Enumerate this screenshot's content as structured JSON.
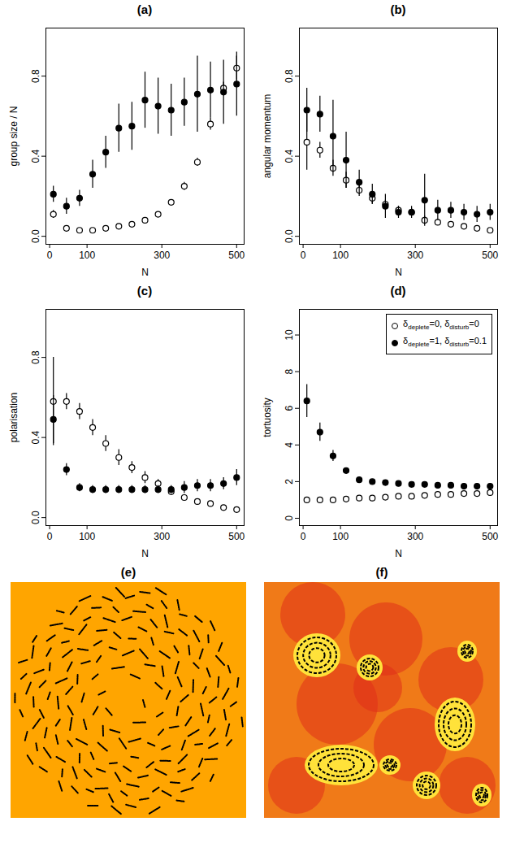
{
  "chart_data": [
    {
      "type": "scatter",
      "title": "(a)",
      "xlabel": "N",
      "ylabel": "group size / N",
      "x": [
        10,
        45,
        80,
        115,
        150,
        185,
        220,
        255,
        290,
        325,
        360,
        395,
        430,
        465,
        500
      ],
      "xlim": [
        -10,
        520
      ],
      "xticks": [
        0,
        100,
        300,
        500
      ],
      "ylim": [
        -0.04,
        1.04
      ],
      "yticks": [
        {
          "value": 0,
          "label": "0.0"
        },
        {
          "value": 0.4,
          "label": "0.4"
        },
        {
          "value": 0.8,
          "label": "0.8"
        }
      ],
      "series": [
        {
          "name": "δdeplete=0, δdisturb=0",
          "color": "#000000",
          "marker": "open circle",
          "values": [
            0.11,
            0.04,
            0.03,
            0.03,
            0.04,
            0.05,
            0.06,
            0.08,
            0.11,
            0.17,
            0.25,
            0.37,
            0.56,
            0.74,
            0.84
          ],
          "errors": [
            0.02,
            0.01,
            0.01,
            0.01,
            0.01,
            0.01,
            0.01,
            0.01,
            0.01,
            0.01,
            0.02,
            0.02,
            0.03,
            0.03,
            0.06
          ]
        },
        {
          "name": "δdeplete=1, δdisturb=0.1",
          "color": "#000000",
          "marker": "circle",
          "values": [
            0.21,
            0.15,
            0.19,
            0.31,
            0.42,
            0.54,
            0.55,
            0.68,
            0.65,
            0.63,
            0.67,
            0.71,
            0.73,
            0.72,
            0.76
          ],
          "errors": [
            0.04,
            0.04,
            0.04,
            0.07,
            0.08,
            0.12,
            0.12,
            0.14,
            0.14,
            0.13,
            0.12,
            0.19,
            0.14,
            0.16,
            0.16
          ]
        }
      ]
    },
    {
      "type": "scatter",
      "title": "(b)",
      "xlabel": "N",
      "ylabel": "angular momentum",
      "x": [
        10,
        45,
        80,
        115,
        150,
        185,
        220,
        255,
        290,
        325,
        360,
        395,
        430,
        465,
        500
      ],
      "xlim": [
        -10,
        520
      ],
      "xticks": [
        0,
        100,
        300,
        500
      ],
      "ylim": [
        -0.04,
        1.04
      ],
      "yticks": [
        {
          "value": 0,
          "label": "0.0"
        },
        {
          "value": 0.4,
          "label": "0.4"
        },
        {
          "value": 0.8,
          "label": "0.8"
        }
      ],
      "series": [
        {
          "name": "δdeplete=0, δdisturb=0",
          "color": "#000000",
          "marker": "open circle",
          "values": [
            0.47,
            0.43,
            0.34,
            0.28,
            0.23,
            0.19,
            0.16,
            0.13,
            0.12,
            0.08,
            0.07,
            0.06,
            0.05,
            0.04,
            0.03
          ],
          "errors": [
            0.14,
            0.04,
            0.04,
            0.04,
            0.03,
            0.03,
            0.02,
            0.02,
            0.02,
            0.02,
            0.01,
            0.01,
            0.01,
            0.01,
            0.01
          ]
        },
        {
          "name": "δdeplete=1, δdisturb=0.1",
          "color": "#000000",
          "marker": "circle",
          "values": [
            0.63,
            0.61,
            0.5,
            0.38,
            0.27,
            0.21,
            0.15,
            0.12,
            0.12,
            0.18,
            0.13,
            0.13,
            0.12,
            0.11,
            0.12
          ],
          "errors": [
            0.11,
            0.09,
            0.18,
            0.14,
            0.06,
            0.05,
            0.06,
            0.03,
            0.03,
            0.13,
            0.05,
            0.04,
            0.04,
            0.04,
            0.04
          ]
        }
      ]
    },
    {
      "type": "scatter",
      "title": "(c)",
      "xlabel": "N",
      "ylabel": "polarisation",
      "x": [
        10,
        45,
        80,
        115,
        150,
        185,
        220,
        255,
        290,
        325,
        360,
        395,
        430,
        465,
        500
      ],
      "xlim": [
        -10,
        520
      ],
      "xticks": [
        0,
        100,
        300,
        500
      ],
      "ylim": [
        -0.04,
        1.04
      ],
      "yticks": [
        {
          "value": 0,
          "label": "0.0"
        },
        {
          "value": 0.4,
          "label": "0.4"
        },
        {
          "value": 0.8,
          "label": "0.8"
        }
      ],
      "series": [
        {
          "name": "δdeplete=0, δdisturb=0",
          "color": "#000000",
          "marker": "open circle",
          "values": [
            0.58,
            0.58,
            0.53,
            0.45,
            0.37,
            0.3,
            0.25,
            0.2,
            0.17,
            0.13,
            0.1,
            0.08,
            0.07,
            0.05,
            0.04
          ],
          "errors": [
            0.22,
            0.04,
            0.04,
            0.04,
            0.04,
            0.04,
            0.03,
            0.03,
            0.02,
            0.02,
            0.01,
            0.01,
            0.01,
            0.01,
            0.01
          ]
        },
        {
          "name": "δdeplete=1, δdisturb=0.1",
          "color": "#000000",
          "marker": "circle",
          "values": [
            0.49,
            0.24,
            0.15,
            0.14,
            0.14,
            0.14,
            0.14,
            0.14,
            0.14,
            0.14,
            0.15,
            0.16,
            0.16,
            0.17,
            0.2
          ],
          "errors": [
            0.12,
            0.03,
            0.02,
            0.02,
            0.02,
            0.02,
            0.02,
            0.02,
            0.02,
            0.02,
            0.03,
            0.03,
            0.03,
            0.03,
            0.04
          ]
        }
      ]
    },
    {
      "type": "scatter",
      "title": "(d)",
      "xlabel": "N",
      "ylabel": "tortuosity",
      "legend": "top-right",
      "x": [
        10,
        45,
        80,
        115,
        150,
        185,
        220,
        255,
        290,
        325,
        360,
        395,
        430,
        465,
        500
      ],
      "xlim": [
        -10,
        520
      ],
      "xticks": [
        0,
        100,
        300,
        500
      ],
      "ylim": [
        -0.4,
        11.4
      ],
      "yticks": [
        0,
        2,
        4,
        6,
        8,
        10
      ],
      "series": [
        {
          "name": "δdeplete=0, δdisturb=0",
          "color": "#000000",
          "marker": "open circle",
          "values": [
            1.0,
            1.0,
            1.0,
            1.05,
            1.1,
            1.1,
            1.15,
            1.2,
            1.2,
            1.25,
            1.3,
            1.3,
            1.35,
            1.35,
            1.4
          ],
          "errors": [
            0.05,
            0.05,
            0.05,
            0.05,
            0.05,
            0.05,
            0.05,
            0.05,
            0.05,
            0.05,
            0.05,
            0.05,
            0.05,
            0.05,
            0.05
          ]
        },
        {
          "name": "δdeplete=1, δdisturb=0.1",
          "color": "#000000",
          "marker": "circle",
          "values": [
            6.4,
            4.7,
            3.4,
            2.6,
            2.1,
            2.0,
            1.95,
            1.9,
            1.85,
            1.85,
            1.8,
            1.8,
            1.75,
            1.75,
            1.75
          ],
          "errors": [
            0.9,
            0.5,
            0.3,
            0.15,
            0.1,
            0.1,
            0.1,
            0.1,
            0.1,
            0.1,
            0.1,
            0.1,
            0.1,
            0.1,
            0.1
          ]
        }
      ]
    }
  ],
  "images": [
    {
      "title": "(e)"
    },
    {
      "title": "(f)"
    }
  ]
}
